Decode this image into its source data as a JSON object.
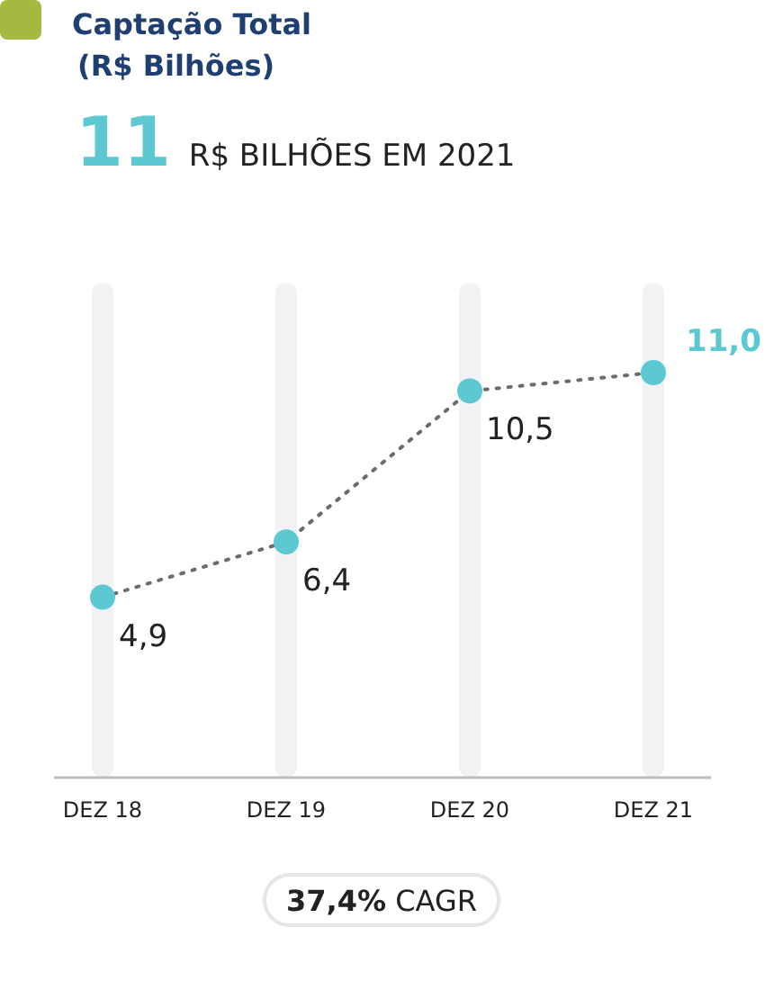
{
  "chart_data": {
    "type": "line",
    "title": "Captação Total\n(R$ Bilhões)",
    "subtitle": "11 R$ BILHÕES EM 2021",
    "categories": [
      "DEZ 18",
      "DEZ 19",
      "DEZ 20",
      "DEZ 21"
    ],
    "series": [
      {
        "color": "#5bc8d2",
        "values": [
          4.9,
          6.4,
          10.5,
          11.0
        ],
        "value_labels": [
          "4,9",
          "6,4",
          "10,5",
          "11,0"
        ]
      }
    ],
    "tick_labels": "x",
    "grid": "x",
    "marker": "circle",
    "line_style": "dotted",
    "annotations": [
      "37,4% CAGR"
    ]
  }
}
